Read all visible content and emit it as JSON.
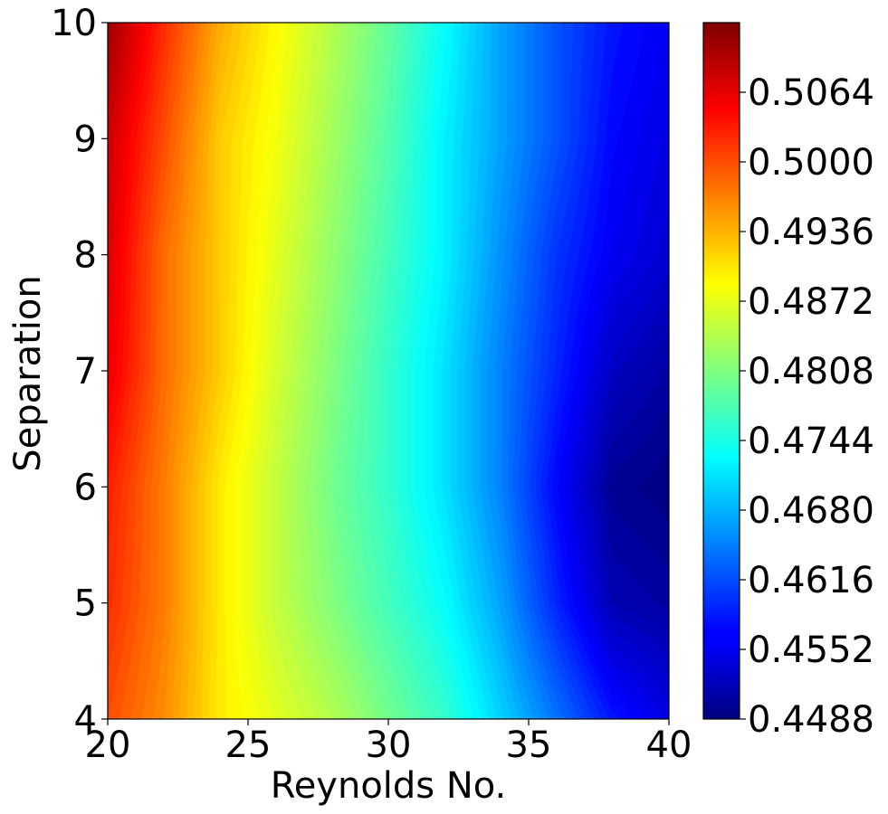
{
  "chart_data": {
    "type": "heatmap",
    "plot_style": "filled-contour",
    "colormap": "jet",
    "xlabel": "Reynolds No.",
    "ylabel": "Separation",
    "xlim": [
      20,
      40
    ],
    "ylim": [
      4,
      10
    ],
    "x_ticks": [
      20,
      25,
      30,
      35,
      40
    ],
    "y_ticks": [
      4,
      5,
      6,
      7,
      8,
      9,
      10
    ],
    "colorbar": {
      "range": [
        0.4488,
        0.5128
      ],
      "ticks": [
        "0.4488",
        "0.4552",
        "0.4616",
        "0.4680",
        "0.4744",
        "0.4808",
        "0.4872",
        "0.4936",
        "0.5000",
        "0.5064"
      ]
    },
    "x": [
      20,
      22,
      24,
      26,
      28,
      30,
      32,
      34,
      36,
      38,
      40
    ],
    "y": [
      4,
      5,
      6,
      7,
      8,
      9,
      10
    ],
    "z": [
      [
        0.5,
        0.496,
        0.49,
        0.487,
        0.484,
        0.48,
        0.476,
        0.47,
        0.464,
        0.458,
        0.455
      ],
      [
        0.502,
        0.497,
        0.49,
        0.485,
        0.481,
        0.477,
        0.473,
        0.467,
        0.459,
        0.452,
        0.451
      ],
      [
        0.503,
        0.497,
        0.49,
        0.485,
        0.48,
        0.476,
        0.471,
        0.465,
        0.457,
        0.45,
        0.449
      ],
      [
        0.506,
        0.498,
        0.492,
        0.486,
        0.481,
        0.476,
        0.471,
        0.465,
        0.459,
        0.453,
        0.451
      ],
      [
        0.507,
        0.498,
        0.492,
        0.487,
        0.482,
        0.477,
        0.472,
        0.466,
        0.46,
        0.456,
        0.454
      ],
      [
        0.508,
        0.5,
        0.492,
        0.488,
        0.483,
        0.478,
        0.472,
        0.467,
        0.462,
        0.457,
        0.455
      ],
      [
        0.511,
        0.502,
        0.494,
        0.489,
        0.484,
        0.479,
        0.473,
        0.467,
        0.462,
        0.458,
        0.456
      ]
    ]
  }
}
